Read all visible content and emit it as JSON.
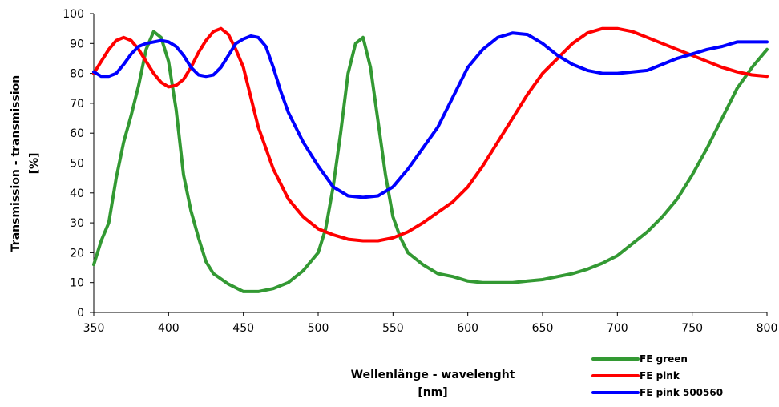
{
  "chart_data": {
    "type": "line",
    "xlabel": "Wellenlänge - wavelenght",
    "xunit": "[nm]",
    "ylabel": "Transmission - transmission",
    "yunit": "[%]",
    "xlim": [
      350,
      800
    ],
    "ylim": [
      0,
      100
    ],
    "xticks": [
      350,
      400,
      450,
      500,
      550,
      600,
      650,
      700,
      750,
      800
    ],
    "yticks": [
      0,
      10,
      20,
      30,
      40,
      50,
      60,
      70,
      80,
      90,
      100
    ],
    "grid": false,
    "legend_position": "bottom-right",
    "series": [
      {
        "name": "FE green",
        "color": "#339933",
        "x": [
          350,
          355,
          360,
          365,
          370,
          375,
          380,
          385,
          390,
          395,
          400,
          405,
          410,
          415,
          420,
          425,
          430,
          440,
          450,
          460,
          470,
          480,
          490,
          500,
          505,
          510,
          515,
          520,
          525,
          530,
          535,
          540,
          545,
          550,
          555,
          560,
          570,
          580,
          590,
          600,
          610,
          620,
          630,
          640,
          650,
          660,
          670,
          680,
          690,
          700,
          710,
          720,
          730,
          740,
          750,
          760,
          770,
          780,
          790,
          800
        ],
        "y": [
          16,
          24,
          30,
          45,
          57,
          66,
          76,
          88,
          94,
          92,
          84,
          68,
          46,
          34,
          25,
          17,
          13,
          9.5,
          7,
          7,
          8,
          10,
          14,
          20,
          28,
          42,
          60,
          80,
          90,
          92,
          82,
          64,
          46,
          32,
          25,
          20,
          16,
          13,
          12,
          10.5,
          10,
          10,
          10,
          10.5,
          11,
          12,
          13,
          14.5,
          16.5,
          19,
          23,
          27,
          32,
          38,
          46,
          55,
          65,
          75,
          82,
          88
        ]
      },
      {
        "name": "FE pink",
        "color": "#ff0000",
        "x": [
          350,
          355,
          360,
          365,
          370,
          375,
          380,
          385,
          390,
          395,
          400,
          405,
          410,
          415,
          420,
          425,
          430,
          435,
          440,
          445,
          450,
          455,
          460,
          470,
          480,
          490,
          500,
          510,
          520,
          530,
          540,
          550,
          560,
          570,
          580,
          590,
          600,
          610,
          620,
          630,
          640,
          650,
          660,
          670,
          680,
          690,
          700,
          710,
          720,
          730,
          740,
          750,
          760,
          770,
          780,
          790,
          800
        ],
        "y": [
          80,
          84,
          88,
          91,
          92,
          91,
          88,
          84,
          80,
          77,
          75.5,
          76,
          78,
          82,
          87,
          91,
          94,
          95,
          93,
          88,
          82,
          72,
          62,
          48,
          38,
          32,
          28,
          26,
          24.5,
          24,
          24,
          25,
          27,
          30,
          33.5,
          37,
          42,
          49,
          57,
          65,
          73,
          80,
          85,
          90,
          93.5,
          95,
          95,
          94,
          92,
          90,
          88,
          86,
          84,
          82,
          80.5,
          79.5,
          79
        ]
      },
      {
        "name": "FE pink 500560",
        "color": "#0000ff",
        "x": [
          350,
          355,
          360,
          365,
          370,
          375,
          380,
          385,
          390,
          395,
          400,
          405,
          410,
          415,
          420,
          425,
          430,
          435,
          440,
          445,
          450,
          455,
          460,
          465,
          470,
          475,
          480,
          490,
          500,
          510,
          520,
          530,
          540,
          550,
          560,
          570,
          580,
          590,
          600,
          610,
          620,
          630,
          640,
          650,
          660,
          670,
          680,
          690,
          700,
          710,
          720,
          730,
          740,
          750,
          760,
          770,
          780,
          790,
          800
        ],
        "y": [
          80.5,
          79,
          79,
          80,
          83,
          86.5,
          89,
          90,
          90.5,
          91,
          90.5,
          89,
          86,
          82,
          79.5,
          79,
          79.5,
          82,
          86,
          90,
          91.5,
          92.5,
          92,
          89,
          82,
          74,
          67,
          57,
          49,
          42,
          39,
          38.5,
          39,
          42,
          48,
          55,
          62,
          72,
          82,
          88,
          92,
          93.5,
          93,
          90,
          86,
          83,
          81,
          80,
          80,
          80.5,
          81,
          83,
          85,
          86.5,
          88,
          89,
          90.5,
          90.5,
          90.5
        ]
      }
    ]
  }
}
